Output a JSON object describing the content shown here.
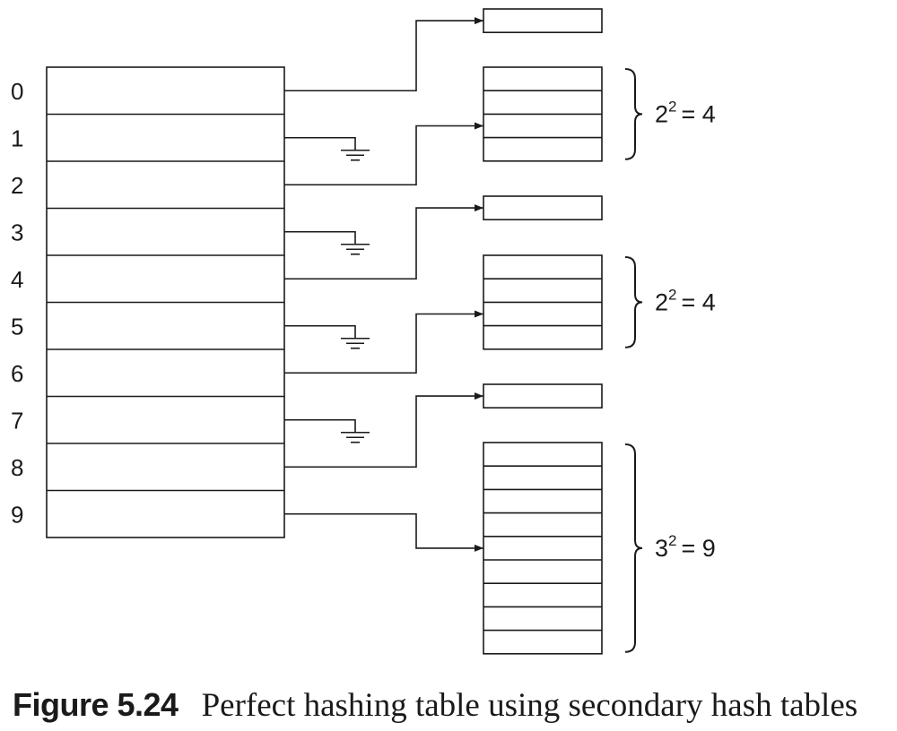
{
  "primary_table": {
    "indices": [
      "0",
      "1",
      "2",
      "3",
      "4",
      "5",
      "6",
      "7",
      "8",
      "9"
    ]
  },
  "pointers": [
    {
      "slot": 0,
      "target": "table-0"
    },
    {
      "slot": 1,
      "target": "ground"
    },
    {
      "slot": 2,
      "target": "table-1"
    },
    {
      "slot": 3,
      "target": "ground"
    },
    {
      "slot": 4,
      "target": "table-2"
    },
    {
      "slot": 5,
      "target": "ground"
    },
    {
      "slot": 6,
      "target": "table-3"
    },
    {
      "slot": 7,
      "target": "ground"
    },
    {
      "slot": 8,
      "target": "table-4"
    },
    {
      "slot": 9,
      "target": "table-5"
    }
  ],
  "secondary_tables": [
    {
      "id": "table-0",
      "cells": 1
    },
    {
      "id": "table-1",
      "cells": 4,
      "size_label": {
        "base": "2",
        "exp": "2",
        "result": "= 4"
      }
    },
    {
      "id": "table-2",
      "cells": 1
    },
    {
      "id": "table-3",
      "cells": 4,
      "size_label": {
        "base": "2",
        "exp": "2",
        "result": "= 4"
      }
    },
    {
      "id": "table-4",
      "cells": 1
    },
    {
      "id": "table-5",
      "cells": 9,
      "size_label": {
        "base": "3",
        "exp": "2",
        "result": "= 9"
      }
    }
  ],
  "caption": {
    "label": "Figure 5.24",
    "text": "Perfect hashing table using secondary hash tables"
  },
  "colors": {
    "stroke": "#1a1a1a",
    "background": "#ffffff"
  }
}
